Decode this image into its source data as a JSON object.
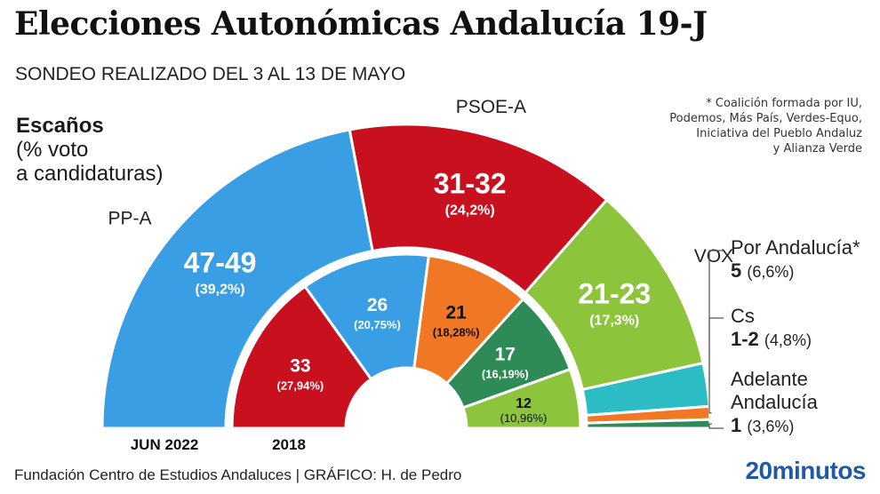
{
  "title": "Elecciones Autonómicas Andalucía 19-J",
  "subtitle": "SONDEO REALIZADO DEL 3 AL 13 DE MAYO",
  "note_lines": [
    "* Coalición formada por IU,",
    "Podemos, Más País, Verdes-Equo,",
    "Iniciativa del Pueblo Andaluz",
    "y Alianza Verde"
  ],
  "heading": {
    "bold": "Escaños",
    "line2": "(% voto",
    "line3": "a candidaturas)"
  },
  "footer": {
    "source": "Fundación Centro de Estudios Andaluces  |  GRÁFICO: H. de Pedro",
    "brand": "20minutos"
  },
  "ring_labels": {
    "outer": "JUN 2022",
    "inner": "2018"
  },
  "colors": {
    "pp": "#3a9ee4",
    "psoe": "#c8101e",
    "vox": "#8cc43c",
    "por_andalucia": "#2cbcc4",
    "cs": "#f07824",
    "adelante": "#2e8b57"
  },
  "chart_data": [
    {
      "type": "pie",
      "name": "JUN 2022 (sondeo)",
      "shape": "half-donut",
      "total_seats": 109,
      "series": [
        {
          "party": "PP-A",
          "seats": "47-49",
          "seats_mid": 48,
          "vote": "(39,2%)",
          "color": "#3a9ee4",
          "label_pos": "inside"
        },
        {
          "party": "PSOE-A",
          "seats": "31-32",
          "seats_mid": 31.5,
          "vote": "(24,2%)",
          "color": "#c8101e",
          "label_pos": "inside"
        },
        {
          "party": "VOX",
          "seats": "21-23",
          "seats_mid": 22,
          "vote": "(17,3%)",
          "color": "#8cc43c",
          "label_pos": "inside"
        },
        {
          "party": "Por Andalucía*",
          "seats": "5",
          "seats_mid": 5,
          "vote": "(6,6%)",
          "color": "#2cbcc4",
          "label_pos": "side"
        },
        {
          "party": "Cs",
          "seats": "1-2",
          "seats_mid": 1.5,
          "vote": "(4,8%)",
          "color": "#f07824",
          "label_pos": "side"
        },
        {
          "party": "Adelante Andalucía",
          "seats": "1",
          "seats_mid": 1,
          "vote": "(3,6%)",
          "color": "#2e8b57",
          "label_pos": "side"
        }
      ]
    },
    {
      "type": "pie",
      "name": "2018",
      "shape": "half-donut",
      "total_seats": 109,
      "series": [
        {
          "party": "PSOE-A",
          "seats": "33",
          "seats_mid": 33,
          "vote": "(27,94%)",
          "color": "#c8101e",
          "text_color": "#ffffff"
        },
        {
          "party": "PP-A",
          "seats": "26",
          "seats_mid": 26,
          "vote": "(20,75%)",
          "color": "#3a9ee4",
          "text_color": "#ffffff"
        },
        {
          "party": "Cs",
          "seats": "21",
          "seats_mid": 21,
          "vote": "(18,28%)",
          "color": "#f07824",
          "text_color": "#111111"
        },
        {
          "party": "Adelante Andalucía",
          "seats": "17",
          "seats_mid": 17,
          "vote": "(16,19%)",
          "color": "#2e8b57",
          "text_color": "#ffffff"
        },
        {
          "party": "VOX",
          "seats": "12",
          "seats_mid": 12,
          "vote": "(10,96%)",
          "color": "#8cc43c",
          "text_color": "#111111"
        }
      ]
    }
  ]
}
